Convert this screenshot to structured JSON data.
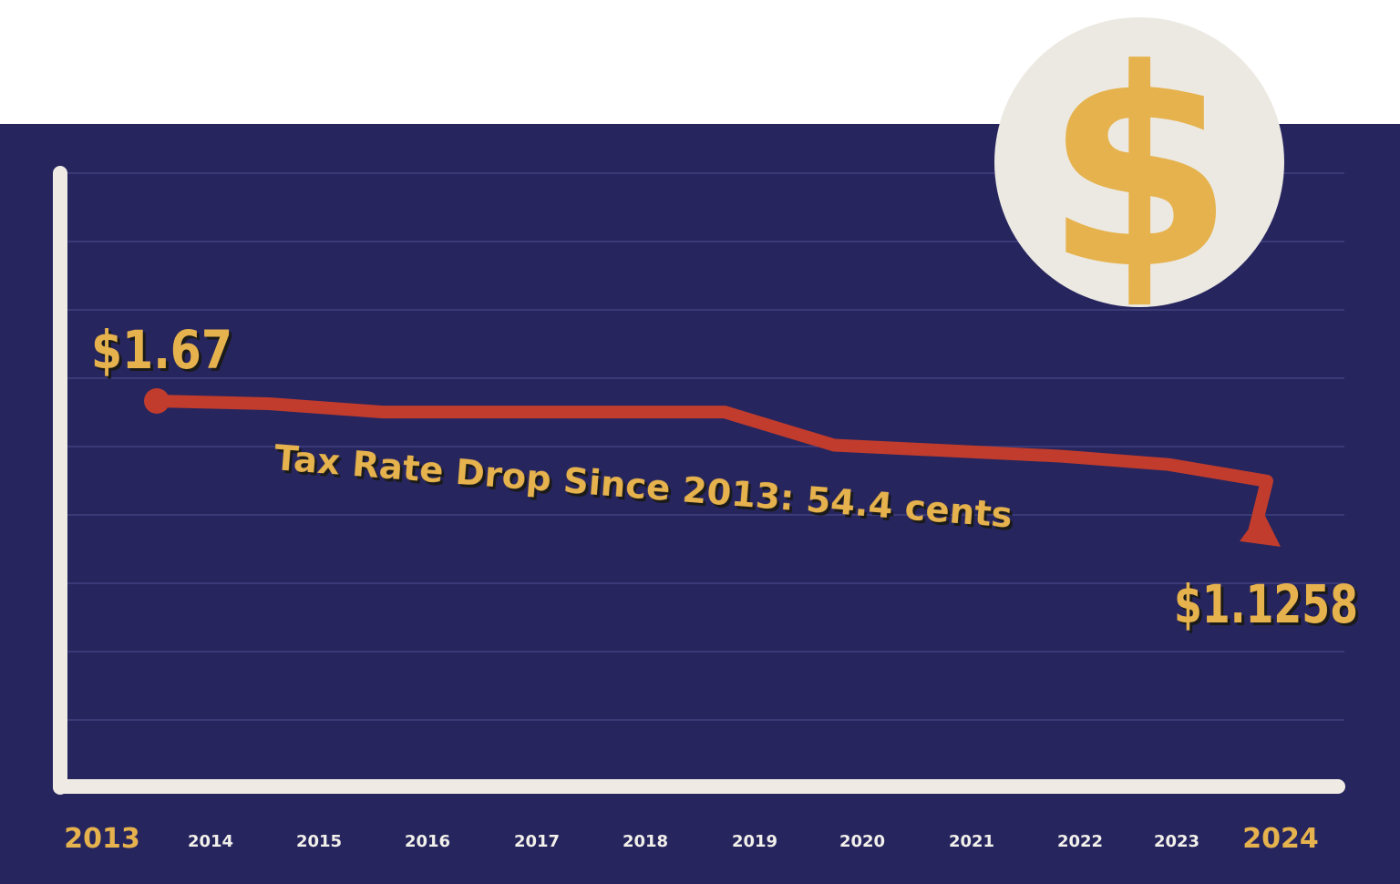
{
  "chart_data": {
    "type": "line",
    "title": "Tax Rate Drop Since 2013: 54.4 cents",
    "x": [
      "2013",
      "2014",
      "2015",
      "2016",
      "2017",
      "2018",
      "2019",
      "2020",
      "2021",
      "2022",
      "2023",
      "2024"
    ],
    "values": [
      1.67,
      1.66,
      1.63,
      1.63,
      1.63,
      1.63,
      1.51,
      1.49,
      1.47,
      1.44,
      1.38,
      1.1258
    ],
    "start_label": "$1.67",
    "end_label": "$1.1258",
    "annotation": "Tax Rate Drop Since 2013: 54.4 cents",
    "ylim": [
      0,
      1.9
    ],
    "grid": true,
    "colors": {
      "background": "#26255e",
      "line": "#c13c2c",
      "accent": "#e6b24d",
      "axis": "#efebe4"
    }
  },
  "icon": "dollar-coin-icon",
  "icon_text": "$"
}
